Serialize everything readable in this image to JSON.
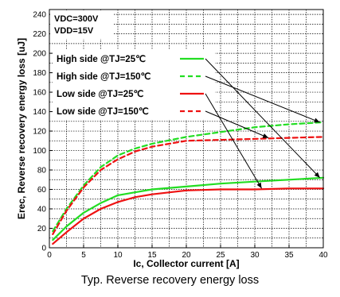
{
  "chart_data": {
    "type": "line",
    "caption": "Typ. Reverse recovery energy loss",
    "xlabel": "Ic, Collector current [A]",
    "ylabel": "Erec, Reverse recovery energy loss [uJ]",
    "xlim": [
      0,
      40
    ],
    "ylim": [
      0,
      245
    ],
    "x_ticks": [
      0,
      5,
      10,
      15,
      20,
      25,
      30,
      35,
      40
    ],
    "y_ticks": [
      0,
      20,
      40,
      60,
      80,
      100,
      120,
      140,
      160,
      180,
      200,
      220,
      240
    ],
    "grid": "dotted",
    "conditions": [
      "VDC=300V",
      "VDD=15V"
    ],
    "series": [
      {
        "name": "High side @TJ=25℃",
        "color": "#22dd22",
        "dash": "solid",
        "x": [
          0.5,
          2.5,
          5,
          7.5,
          10,
          12.5,
          15,
          20,
          25,
          30,
          35,
          40
        ],
        "y": [
          8,
          22,
          36,
          46,
          54,
          57,
          60,
          63,
          66,
          68,
          70,
          72
        ]
      },
      {
        "name": "High side @TJ=150℃",
        "color": "#22dd22",
        "dash": "dashed",
        "x": [
          0.5,
          2.5,
          5,
          7.5,
          10,
          12.5,
          15,
          20,
          25,
          30,
          35,
          40
        ],
        "y": [
          17,
          40,
          64,
          83,
          95,
          102,
          107,
          114,
          119,
          124,
          127,
          129
        ]
      },
      {
        "name": "Low side @TJ=25℃",
        "color": "#ee1111",
        "dash": "solid",
        "x": [
          0.5,
          2.5,
          5,
          7.5,
          10,
          12.5,
          15,
          20,
          25,
          30,
          35,
          40
        ],
        "y": [
          4,
          16,
          30,
          40,
          47,
          52,
          55,
          59,
          60,
          60,
          61,
          61
        ]
      },
      {
        "name": "Low side @TJ=150℃",
        "color": "#ee1111",
        "dash": "dashed",
        "x": [
          0.5,
          2.5,
          5,
          7.5,
          10,
          12.5,
          15,
          20,
          25,
          30,
          35,
          40
        ],
        "y": [
          14,
          38,
          62,
          80,
          91,
          99,
          104,
          110,
          111,
          112,
          113,
          114
        ]
      }
    ]
  }
}
